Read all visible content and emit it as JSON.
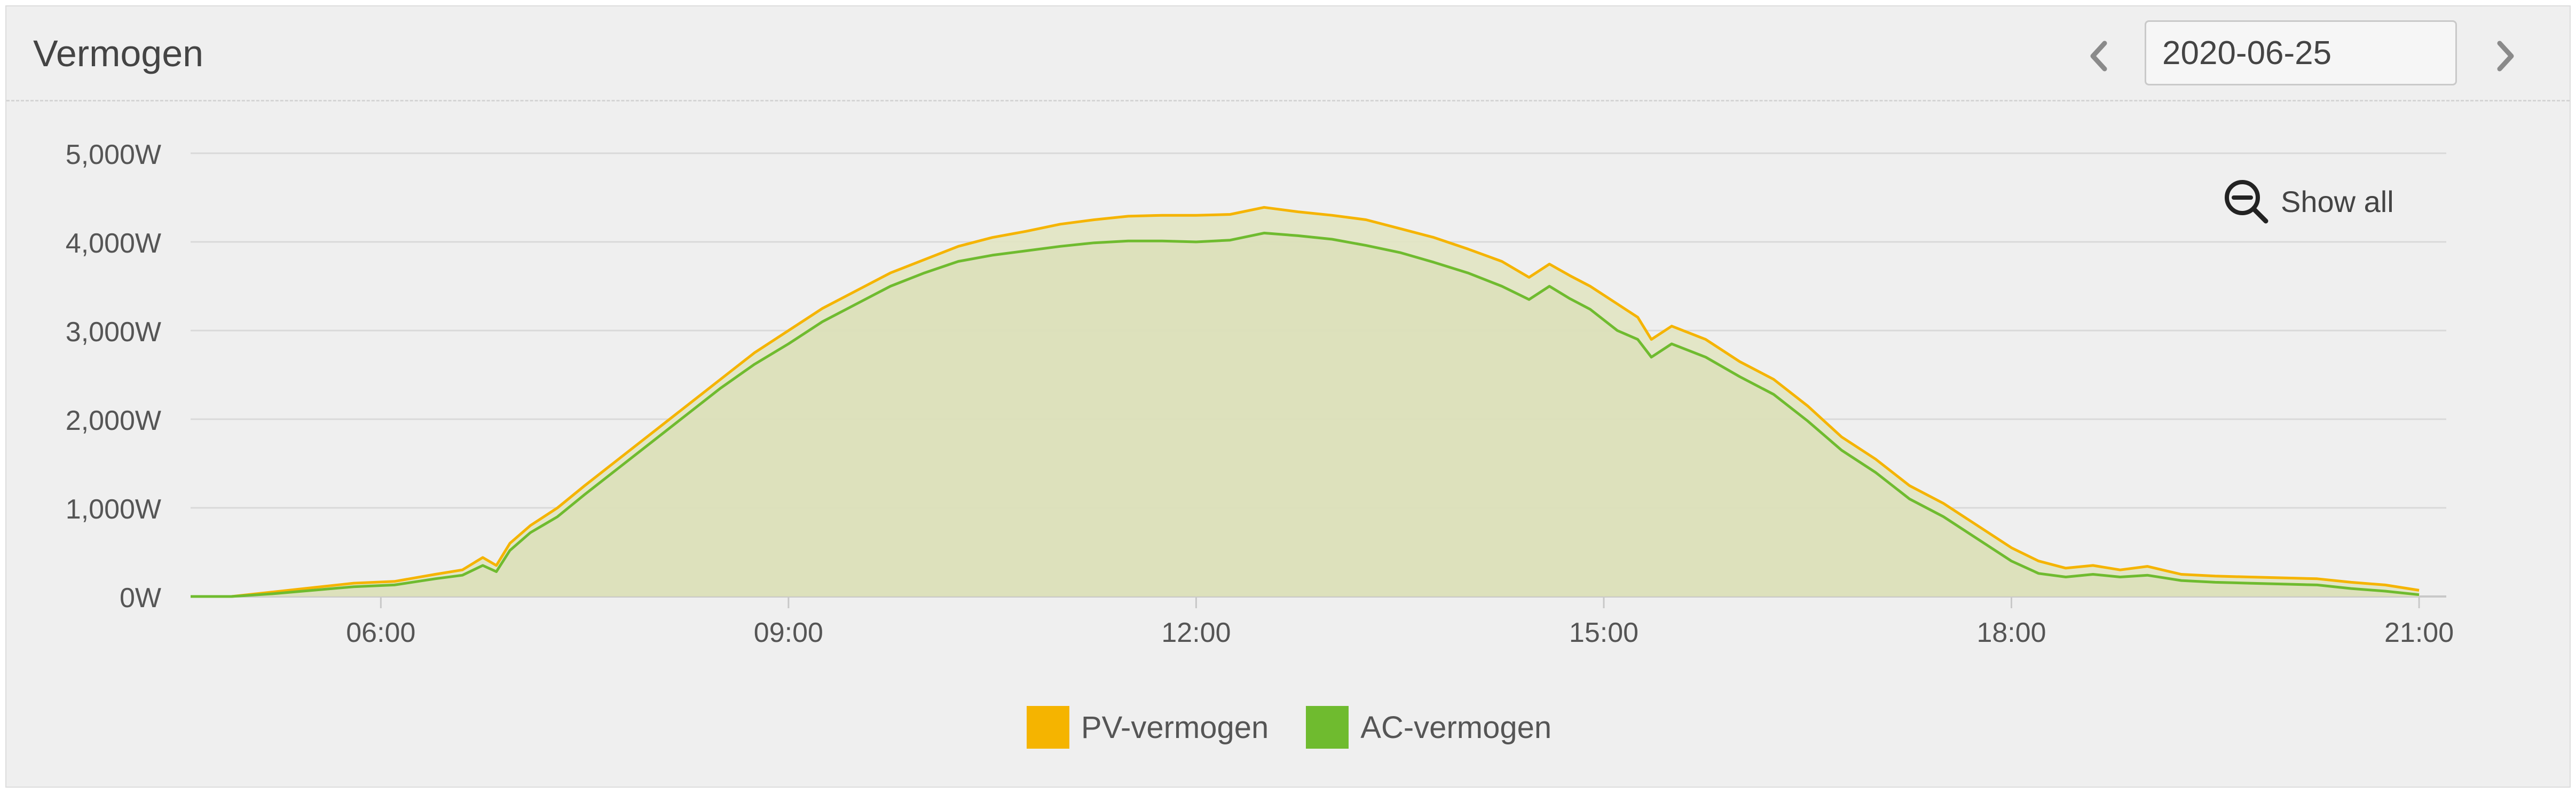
{
  "header": {
    "title": "Vermogen",
    "date_value": "2020-06-25",
    "prev_icon": "chevron-left-icon",
    "next_icon": "chevron-right-icon"
  },
  "zoom": {
    "label": "Show all",
    "icon": "zoom-out-icon"
  },
  "colors": {
    "pv": "#f5b400",
    "ac": "#6fbb2f",
    "fill": "#e2e5c4",
    "grid": "#d9d9d9",
    "text": "#555555"
  },
  "legend": [
    {
      "key": "pv",
      "label": "PV-vermogen"
    },
    {
      "key": "ac",
      "label": "AC-vermogen"
    }
  ],
  "chart_data": {
    "type": "area",
    "x_unit": "hours",
    "xlim": [
      4.6,
      21.2
    ],
    "ylim": [
      0,
      5000
    ],
    "x_ticks": [
      6,
      9,
      12,
      15,
      18,
      21
    ],
    "x_tick_labels": [
      "06:00",
      "09:00",
      "12:00",
      "15:00",
      "18:00",
      "21:00"
    ],
    "y_ticks": [
      0,
      1000,
      2000,
      3000,
      4000,
      5000
    ],
    "y_tick_labels": [
      "0W",
      "1,000W",
      "2,000W",
      "3,000W",
      "4,000W",
      "5,000W"
    ],
    "grid": true,
    "legend_position": "bottom-center",
    "x": [
      4.6,
      4.9,
      5.2,
      5.5,
      5.8,
      6.1,
      6.4,
      6.6,
      6.75,
      6.85,
      6.95,
      7.1,
      7.3,
      7.5,
      7.75,
      8.0,
      8.25,
      8.5,
      8.75,
      9.0,
      9.25,
      9.5,
      9.75,
      10.0,
      10.25,
      10.5,
      10.75,
      11.0,
      11.25,
      11.5,
      11.75,
      12.0,
      12.25,
      12.5,
      12.75,
      13.0,
      13.25,
      13.5,
      13.75,
      14.0,
      14.25,
      14.45,
      14.6,
      14.75,
      14.9,
      15.1,
      15.25,
      15.35,
      15.5,
      15.75,
      16.0,
      16.25,
      16.5,
      16.75,
      17.0,
      17.25,
      17.5,
      17.75,
      18.0,
      18.2,
      18.4,
      18.6,
      18.8,
      19.0,
      19.25,
      19.5,
      19.75,
      20.0,
      20.25,
      20.5,
      20.75,
      21.0
    ],
    "series": [
      {
        "name": "PV-vermogen",
        "color": "#f5b400",
        "values": [
          0,
          0,
          50,
          100,
          150,
          170,
          250,
          300,
          440,
          350,
          600,
          800,
          1000,
          1250,
          1550,
          1850,
          2150,
          2450,
          2750,
          3000,
          3250,
          3450,
          3650,
          3800,
          3950,
          4050,
          4120,
          4200,
          4250,
          4290,
          4300,
          4300,
          4310,
          4390,
          4340,
          4300,
          4250,
          4150,
          4050,
          3920,
          3780,
          3600,
          3750,
          3620,
          3500,
          3300,
          3150,
          2900,
          3050,
          2900,
          2650,
          2450,
          2150,
          1800,
          1550,
          1250,
          1050,
          800,
          550,
          400,
          320,
          350,
          300,
          340,
          250,
          230,
          220,
          210,
          200,
          160,
          130,
          70
        ]
      },
      {
        "name": "AC-vermogen",
        "color": "#6fbb2f",
        "values": [
          0,
          0,
          30,
          70,
          110,
          130,
          200,
          240,
          350,
          280,
          520,
          720,
          900,
          1150,
          1450,
          1750,
          2050,
          2350,
          2620,
          2850,
          3100,
          3300,
          3500,
          3650,
          3780,
          3850,
          3900,
          3950,
          3990,
          4010,
          4010,
          4000,
          4020,
          4100,
          4070,
          4030,
          3960,
          3880,
          3770,
          3650,
          3500,
          3350,
          3500,
          3360,
          3240,
          3000,
          2900,
          2700,
          2850,
          2700,
          2480,
          2280,
          1980,
          1650,
          1400,
          1100,
          900,
          650,
          400,
          260,
          220,
          250,
          220,
          240,
          180,
          160,
          150,
          140,
          130,
          90,
          60,
          20
        ]
      }
    ]
  }
}
